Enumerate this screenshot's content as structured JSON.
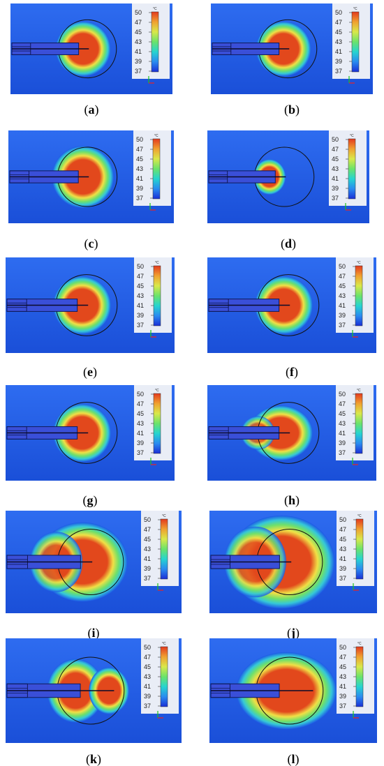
{
  "colorbar": {
    "unit": "°C",
    "ticks": [
      "50",
      "47",
      "45",
      "43",
      "41",
      "39",
      "37"
    ],
    "range": [
      37,
      50
    ],
    "colors": [
      "#1a2fd6",
      "#2a8bf0",
      "#26d4d0",
      "#6be36b",
      "#d9e84a",
      "#f0a030",
      "#e33a1e"
    ]
  },
  "field_colors": {
    "background": "#1d58e6",
    "halo": "#6fe06a",
    "hot": "#e2481c"
  },
  "panels": [
    {
      "label": "(a)"
    },
    {
      "label": "(b)"
    },
    {
      "label": "(c)"
    },
    {
      "label": "(d)"
    },
    {
      "label": "(e)"
    },
    {
      "label": "(f)"
    },
    {
      "label": "(g)"
    },
    {
      "label": "(h)"
    },
    {
      "label": "(i)"
    },
    {
      "label": "(j)"
    },
    {
      "label": "(k)"
    },
    {
      "label": "(l)"
    }
  ]
}
